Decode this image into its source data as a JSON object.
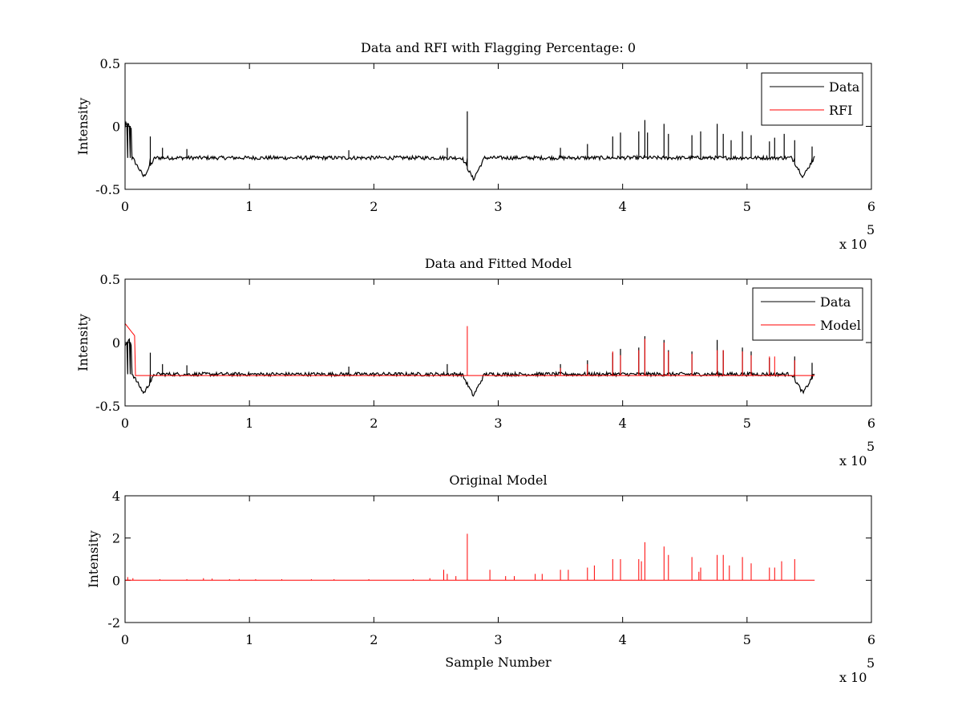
{
  "figure": {
    "background": "#ffffff"
  },
  "chart_data": [
    {
      "type": "line",
      "title": "Data and RFI with Flagging Percentage: 0",
      "xlabel": "",
      "ylabel": "Intensity",
      "xlim": [
        0,
        600000
      ],
      "ylim": [
        -0.5,
        0.5
      ],
      "xticks": [
        0,
        1,
        2,
        3,
        4,
        5,
        6
      ],
      "yticks": [
        "-0.5",
        "0",
        "0.5"
      ],
      "x_multiplier_label": "x 10",
      "x_multiplier_exponent": "5",
      "legend": {
        "placement": "top-right",
        "entries": [
          "Data",
          "RFI"
        ]
      },
      "grid": false,
      "series": [
        {
          "name": "Data",
          "color": "#000000",
          "baseline": -0.25,
          "noise": 0.015,
          "x_end": 555000,
          "spikes": [
            [
              2000,
              0.0
            ],
            [
              4000,
              0.0
            ],
            [
              20000,
              -0.08
            ],
            [
              30000,
              -0.17
            ],
            [
              50000,
              -0.18
            ],
            [
              180000,
              -0.19
            ],
            [
              259000,
              -0.17
            ],
            [
              275000,
              0.12
            ],
            [
              350000,
              -0.17
            ],
            [
              372000,
              -0.14
            ],
            [
              392000,
              -0.08
            ],
            [
              398000,
              -0.05
            ],
            [
              413000,
              -0.04
            ],
            [
              418000,
              0.05
            ],
            [
              420000,
              -0.05
            ],
            [
              433000,
              0.02
            ],
            [
              437000,
              -0.06
            ],
            [
              456000,
              -0.07
            ],
            [
              463000,
              -0.04
            ],
            [
              476000,
              0.02
            ],
            [
              481000,
              -0.06
            ],
            [
              487000,
              -0.11
            ],
            [
              496000,
              -0.04
            ],
            [
              503000,
              -0.07
            ],
            [
              518000,
              -0.12
            ],
            [
              522000,
              -0.09
            ],
            [
              530000,
              -0.06
            ],
            [
              538000,
              -0.11
            ],
            [
              552000,
              -0.16
            ]
          ],
          "dips": [
            [
              15000,
              -0.4
            ],
            [
              280000,
              -0.42
            ],
            [
              545000,
              -0.4
            ]
          ]
        },
        {
          "name": "RFI",
          "color": "#ff0000",
          "values": []
        }
      ]
    },
    {
      "type": "line",
      "title": "Data and Fitted Model",
      "xlabel": "",
      "ylabel": "Intensity",
      "xlim": [
        0,
        600000
      ],
      "ylim": [
        -0.5,
        0.5
      ],
      "xticks": [
        0,
        1,
        2,
        3,
        4,
        5,
        6
      ],
      "yticks": [
        "-0.5",
        "0",
        "0.5"
      ],
      "x_multiplier_label": "x 10",
      "x_multiplier_exponent": "5",
      "legend": {
        "placement": "top-right",
        "entries": [
          "Data",
          "Model"
        ]
      },
      "grid": false,
      "series": [
        {
          "name": "Data",
          "color": "#000000",
          "baseline": -0.25,
          "noise": 0.015,
          "x_end": 555000,
          "spikes": [
            [
              2000,
              0.0
            ],
            [
              4000,
              0.0
            ],
            [
              20000,
              -0.08
            ],
            [
              30000,
              -0.17
            ],
            [
              50000,
              -0.18
            ],
            [
              180000,
              -0.19
            ],
            [
              259000,
              -0.17
            ],
            [
              350000,
              -0.17
            ],
            [
              372000,
              -0.14
            ],
            [
              392000,
              -0.08
            ],
            [
              398000,
              -0.05
            ],
            [
              413000,
              -0.04
            ],
            [
              418000,
              0.05
            ],
            [
              433000,
              0.02
            ],
            [
              437000,
              -0.06
            ],
            [
              456000,
              -0.07
            ],
            [
              476000,
              0.02
            ],
            [
              481000,
              -0.06
            ],
            [
              496000,
              -0.04
            ],
            [
              503000,
              -0.07
            ],
            [
              518000,
              -0.12
            ],
            [
              538000,
              -0.11
            ],
            [
              552000,
              -0.16
            ]
          ],
          "dips": [
            [
              15000,
              -0.4
            ],
            [
              280000,
              -0.42
            ],
            [
              545000,
              -0.4
            ]
          ]
        },
        {
          "name": "Model",
          "color": "#ff0000",
          "baseline": -0.26,
          "x_end": 555000,
          "start_level": 0.15,
          "spikes": [
            [
              275000,
              0.13
            ],
            [
              350000,
              -0.2
            ],
            [
              372000,
              -0.17
            ],
            [
              392000,
              -0.07
            ],
            [
              398000,
              -0.1
            ],
            [
              413000,
              -0.06
            ],
            [
              418000,
              0.03
            ],
            [
              433000,
              0.0
            ],
            [
              437000,
              -0.07
            ],
            [
              456000,
              -0.09
            ],
            [
              476000,
              -0.06
            ],
            [
              481000,
              -0.06
            ],
            [
              496000,
              -0.07
            ],
            [
              503000,
              -0.1
            ],
            [
              518000,
              -0.11
            ],
            [
              522000,
              -0.11
            ],
            [
              538000,
              -0.14
            ]
          ]
        }
      ]
    },
    {
      "type": "line",
      "title": "Original Model",
      "xlabel": "Sample Number",
      "ylabel": "Intensity",
      "xlim": [
        0,
        600000
      ],
      "ylim": [
        -2,
        4
      ],
      "xticks": [
        0,
        1,
        2,
        3,
        4,
        5,
        6
      ],
      "yticks": [
        "-2",
        "0",
        "2",
        "4"
      ],
      "x_multiplier_label": "x 10",
      "x_multiplier_exponent": "5",
      "legend": null,
      "grid": false,
      "series": [
        {
          "name": "",
          "color": "#ff0000",
          "baseline": 0.0,
          "x_end": 555000,
          "spikes": [
            [
              2000,
              0.15
            ],
            [
              6000,
              0.1
            ],
            [
              28000,
              0.05
            ],
            [
              50000,
              0.05
            ],
            [
              63000,
              0.1
            ],
            [
              70000,
              0.08
            ],
            [
              84000,
              0.05
            ],
            [
              92000,
              0.06
            ],
            [
              105000,
              0.05
            ],
            [
              126000,
              0.05
            ],
            [
              150000,
              0.05
            ],
            [
              168000,
              0.05
            ],
            [
              196000,
              0.05
            ],
            [
              232000,
              0.05
            ],
            [
              245000,
              0.1
            ],
            [
              256000,
              0.5
            ],
            [
              259000,
              0.3
            ],
            [
              266000,
              0.2
            ],
            [
              275000,
              2.2
            ],
            [
              293000,
              0.5
            ],
            [
              306000,
              0.2
            ],
            [
              313000,
              0.2
            ],
            [
              330000,
              0.3
            ],
            [
              335000,
              0.3
            ],
            [
              350000,
              0.5
            ],
            [
              356000,
              0.5
            ],
            [
              372000,
              0.6
            ],
            [
              377000,
              0.7
            ],
            [
              392000,
              1.0
            ],
            [
              398000,
              1.0
            ],
            [
              413000,
              1.0
            ],
            [
              415000,
              0.9
            ],
            [
              418000,
              1.8
            ],
            [
              433000,
              1.6
            ],
            [
              437000,
              1.2
            ],
            [
              456000,
              1.1
            ],
            [
              461000,
              0.4
            ],
            [
              463000,
              0.6
            ],
            [
              476000,
              1.2
            ],
            [
              481000,
              1.2
            ],
            [
              486000,
              0.7
            ],
            [
              496000,
              1.1
            ],
            [
              503000,
              0.8
            ],
            [
              518000,
              0.6
            ],
            [
              522000,
              0.6
            ],
            [
              528000,
              0.9
            ],
            [
              538000,
              1.0
            ]
          ]
        }
      ]
    }
  ]
}
